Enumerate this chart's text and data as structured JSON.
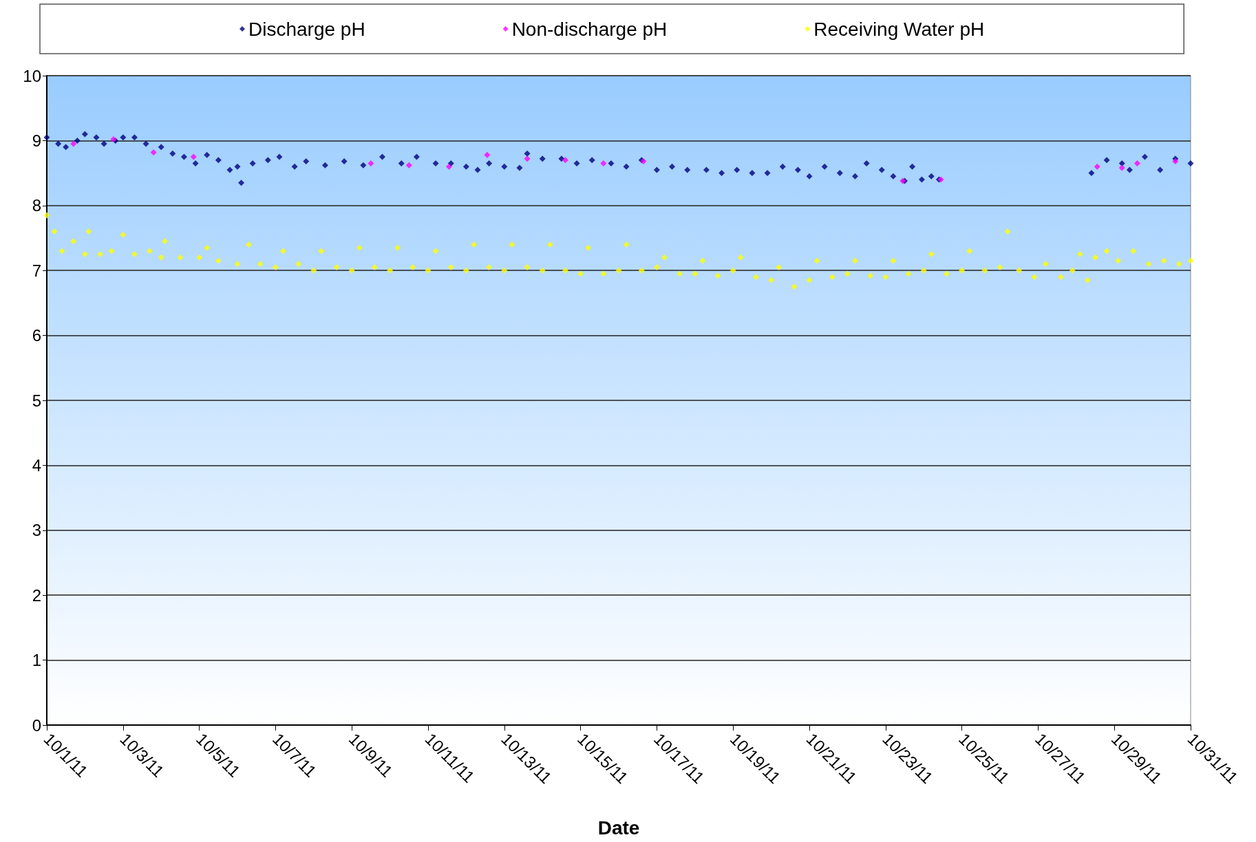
{
  "chart_data": {
    "type": "scatter",
    "xlabel": "Date",
    "marker": "diamond",
    "grid": "y",
    "legend": "top",
    "xlim": [
      "--10-01",
      "--10-31"
    ],
    "xticks": [
      {
        "value": "--10-01",
        "label": "10/1/11"
      },
      {
        "value": "--10-03",
        "label": "10/3/11"
      },
      {
        "value": "--10-05",
        "label": "10/5/11"
      },
      {
        "value": "--10-07",
        "label": "10/7/11"
      },
      {
        "value": "--10-09",
        "label": "10/9/11"
      },
      {
        "value": "--10-11",
        "label": "10/11/11"
      },
      {
        "value": "--10-13",
        "label": "10/13/11"
      },
      {
        "value": "--10-15",
        "label": "10/15/11"
      },
      {
        "value": "--10-17",
        "label": "10/17/11"
      },
      {
        "value": "--10-19",
        "label": "10/19/11"
      },
      {
        "value": "--10-21",
        "label": "10/21/11"
      },
      {
        "value": "--10-23",
        "label": "10/23/11"
      },
      {
        "value": "--10-25",
        "label": "10/25/11"
      },
      {
        "value": "--10-27",
        "label": "10/27/11"
      },
      {
        "value": "--10-29",
        "label": "10/29/11"
      },
      {
        "value": "--10-31",
        "label": "10/31/11"
      }
    ],
    "ylim": [
      0,
      10
    ],
    "yticks": [
      0,
      1,
      2,
      3,
      4,
      5,
      6,
      7,
      8,
      9,
      10
    ],
    "series": [
      {
        "name": "Discharge pH",
        "color": "#000080",
        "x": [
          "--10-01T00:00",
          "--10-01T07:12",
          "--10-01T12:00",
          "--10-01T19:12",
          "--10-02T00:00",
          "--10-02T07:12",
          "--10-02T12:00",
          "--10-02T19:12",
          "--10-03T00:00",
          "--10-03T07:12",
          "--10-03T14:24",
          "--10-04T00:00",
          "--10-04T07:12",
          "--10-04T14:24",
          "--10-04T21:36",
          "--10-05T04:48",
          "--10-05T12:00",
          "--10-05T19:12",
          "--10-06T00:00",
          "--10-06T02:24",
          "--10-06T09:36",
          "--10-06T19:12",
          "--10-07T02:24",
          "--10-07T12:00",
          "--10-07T19:12",
          "--10-08T07:12",
          "--10-08T19:12",
          "--10-09T07:12",
          "--10-09T19:12",
          "--10-10T07:12",
          "--10-10T16:48",
          "--10-11T04:48",
          "--10-11T14:24",
          "--10-12T00:00",
          "--10-12T07:12",
          "--10-12T14:24",
          "--10-13T00:00",
          "--10-13T09:36",
          "--10-13T14:24",
          "--10-14T00:00",
          "--10-14T12:00",
          "--10-14T21:36",
          "--10-15T07:12",
          "--10-15T19:12",
          "--10-16T04:48",
          "--10-16T14:24",
          "--10-17T00:00",
          "--10-17T09:36",
          "--10-17T19:12",
          "--10-18T07:12",
          "--10-18T16:48",
          "--10-19T02:24",
          "--10-19T12:00",
          "--10-19T21:36",
          "--10-20T07:12",
          "--10-20T16:48",
          "--10-21T00:00",
          "--10-21T09:36",
          "--10-21T19:12",
          "--10-22T04:48",
          "--10-22T12:00",
          "--10-22T21:36",
          "--10-23T04:48",
          "--10-23T12:00",
          "--10-23T16:48",
          "--10-23T22:48",
          "--10-24T04:48",
          "--10-24T09:36",
          "--10-28T09:36",
          "--10-28T19:12",
          "--10-29T04:48",
          "--10-29T09:36",
          "--10-29T19:12",
          "--10-30T04:48",
          "--10-30T14:24",
          "--10-31T00:00"
        ],
        "values": [
          9.05,
          8.95,
          8.9,
          9.0,
          9.1,
          9.05,
          8.95,
          9.0,
          9.05,
          9.05,
          8.95,
          8.9,
          8.8,
          8.75,
          8.65,
          8.78,
          8.7,
          8.55,
          8.6,
          8.35,
          8.65,
          8.7,
          8.75,
          8.6,
          8.68,
          8.62,
          8.68,
          8.62,
          8.75,
          8.65,
          8.75,
          8.65,
          8.65,
          8.6,
          8.55,
          8.65,
          8.6,
          8.58,
          8.8,
          8.72,
          8.72,
          8.65,
          8.7,
          8.65,
          8.6,
          8.7,
          8.55,
          8.6,
          8.55,
          8.55,
          8.5,
          8.55,
          8.5,
          8.5,
          8.6,
          8.55,
          8.45,
          8.6,
          8.5,
          8.45,
          8.65,
          8.55,
          8.45,
          8.38,
          8.6,
          8.4,
          8.45,
          8.4,
          8.5,
          8.7,
          8.65,
          8.55,
          8.75,
          8.55,
          8.72,
          8.65
        ]
      },
      {
        "name": "Non-discharge pH",
        "color": "#ff00ff",
        "x": [
          "--10-01T16:48",
          "--10-02T18:00",
          "--10-03T19:12",
          "--10-04T20:24",
          "--10-09T12:00",
          "--10-10T12:00",
          "--10-11T13:12",
          "--10-12T13:12",
          "--10-13T14:24",
          "--10-14T14:24",
          "--10-15T14:24",
          "--10-16T15:36",
          "--10-23T10:48",
          "--10-24T10:48",
          "--10-28T13:12",
          "--10-29T04:48",
          "--10-29T14:24",
          "--10-30T14:24"
        ],
        "values": [
          8.95,
          9.02,
          8.82,
          8.75,
          8.65,
          8.62,
          8.6,
          8.78,
          8.72,
          8.7,
          8.65,
          8.68,
          8.38,
          8.4,
          8.6,
          8.58,
          8.65,
          8.68
        ]
      },
      {
        "name": "Receiving Water pH",
        "color": "#ffff00",
        "x": [
          "--10-01T00:00",
          "--10-01T04:48",
          "--10-01T09:36",
          "--10-01T16:48",
          "--10-02T00:00",
          "--10-02T02:24",
          "--10-02T09:36",
          "--10-02T16:48",
          "--10-03T00:00",
          "--10-03T07:12",
          "--10-03T16:48",
          "--10-04T00:00",
          "--10-04T02:24",
          "--10-04T12:00",
          "--10-05T00:00",
          "--10-05T04:48",
          "--10-05T12:00",
          "--10-06T00:00",
          "--10-06T07:12",
          "--10-06T14:24",
          "--10-07T00:00",
          "--10-07T04:48",
          "--10-07T14:24",
          "--10-08T00:00",
          "--10-08T04:48",
          "--10-08T14:24",
          "--10-09T00:00",
          "--10-09T04:48",
          "--10-09T14:24",
          "--10-10T00:00",
          "--10-10T04:48",
          "--10-10T14:24",
          "--10-11T00:00",
          "--10-11T04:48",
          "--10-11T14:24",
          "--10-12T00:00",
          "--10-12T04:48",
          "--10-12T14:24",
          "--10-13T00:00",
          "--10-13T04:48",
          "--10-13T14:24",
          "--10-14T00:00",
          "--10-14T04:48",
          "--10-14T14:24",
          "--10-15T00:00",
          "--10-15T04:48",
          "--10-15T14:24",
          "--10-16T00:00",
          "--10-16T04:48",
          "--10-16T14:24",
          "--10-17T00:00",
          "--10-17T04:48",
          "--10-17T14:24",
          "--10-18T00:00",
          "--10-18T04:48",
          "--10-18T14:24",
          "--10-19T00:00",
          "--10-19T04:48",
          "--10-19T14:24",
          "--10-20T00:00",
          "--10-20T04:48",
          "--10-20T14:24",
          "--10-21T00:00",
          "--10-21T04:48",
          "--10-21T14:24",
          "--10-22T00:00",
          "--10-22T04:48",
          "--10-22T14:24",
          "--10-23T00:00",
          "--10-23T04:48",
          "--10-23T14:24",
          "--10-24T00:00",
          "--10-24T04:48",
          "--10-24T14:24",
          "--10-25T00:00",
          "--10-25T04:48",
          "--10-25T14:24",
          "--10-26T00:00",
          "--10-26T04:48",
          "--10-26T12:00",
          "--10-26T21:36",
          "--10-27T04:48",
          "--10-27T14:24",
          "--10-27T21:36",
          "--10-28T02:24",
          "--10-28T07:12",
          "--10-28T12:00",
          "--10-28T19:12",
          "--10-29T02:24",
          "--10-29T12:00",
          "--10-29T21:36",
          "--10-30T07:12",
          "--10-30T16:48",
          "--10-31T00:00"
        ],
        "values": [
          7.85,
          7.6,
          7.3,
          7.45,
          7.25,
          7.6,
          7.25,
          7.3,
          7.55,
          7.25,
          7.3,
          7.2,
          7.45,
          7.2,
          7.2,
          7.35,
          7.15,
          7.1,
          7.4,
          7.1,
          7.05,
          7.3,
          7.1,
          7.0,
          7.3,
          7.05,
          7.0,
          7.35,
          7.05,
          7.0,
          7.35,
          7.05,
          7.0,
          7.3,
          7.05,
          7.0,
          7.4,
          7.05,
          7.0,
          7.4,
          7.05,
          7.0,
          7.4,
          7.0,
          6.95,
          7.35,
          6.95,
          7.0,
          7.4,
          7.0,
          7.05,
          7.2,
          6.95,
          6.95,
          7.15,
          6.92,
          7.0,
          7.2,
          6.9,
          6.85,
          7.05,
          6.75,
          6.85,
          7.15,
          6.9,
          6.95,
          7.15,
          6.92,
          6.9,
          7.15,
          6.95,
          7.0,
          7.25,
          6.95,
          7.0,
          7.3,
          7.0,
          7.05,
          7.6,
          7.0,
          6.9,
          7.1,
          6.9,
          7.0,
          7.25,
          6.85,
          7.2,
          7.3,
          7.15,
          7.3,
          7.1,
          7.15,
          7.1,
          7.15
        ]
      }
    ]
  }
}
